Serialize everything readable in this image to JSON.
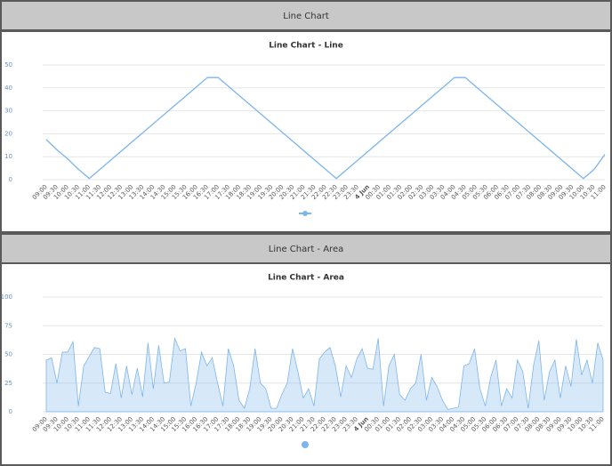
{
  "panels": [
    {
      "header": "Line Chart"
    },
    {
      "header": "Line Chart - Area"
    }
  ],
  "chart_data": [
    {
      "type": "line",
      "title": "Line Chart - Line",
      "categories": [
        "09:00",
        "09:30",
        "10:00",
        "10:30",
        "11:00",
        "11:30",
        "12:00",
        "12:30",
        "13:00",
        "13:30",
        "14:00",
        "14:30",
        "15:00",
        "15:30",
        "16:00",
        "16:30",
        "17:00",
        "17:30",
        "18:00",
        "18:30",
        "19:00",
        "19:30",
        "20:00",
        "20:30",
        "21:00",
        "21:30",
        "22:00",
        "22:30",
        "23:00",
        "23:30",
        "4 Jun",
        "00:30",
        "01:00",
        "01:30",
        "02:00",
        "02:30",
        "03:00",
        "03:30",
        "04:00",
        "04:30",
        "05:00",
        "05:30",
        "06:00",
        "06:30",
        "07:00",
        "07:30",
        "08:00",
        "08:30",
        "09:00",
        "09:30",
        "10:00",
        "10:30",
        "11:00"
      ],
      "values": [
        17.5,
        13,
        9,
        4.5,
        0.5,
        4.5,
        8.5,
        12.5,
        16.5,
        20.5,
        24.5,
        28.5,
        32.5,
        36.5,
        40.5,
        44.5,
        44.5,
        40.5,
        36.5,
        32.5,
        28.5,
        24.5,
        20.5,
        16.5,
        12.5,
        8.5,
        4.5,
        0.5,
        4.5,
        8.5,
        12.5,
        16.5,
        20.5,
        24.5,
        28.5,
        32.5,
        36.5,
        40.5,
        44.5,
        44.5,
        40.5,
        36.5,
        32.5,
        28.5,
        24.5,
        20.5,
        16.5,
        12.5,
        8.5,
        4.5,
        0.5,
        4.5,
        11
      ],
      "color": "#7cb5ec",
      "ylim": [
        0,
        50
      ],
      "yticks": [
        0,
        10,
        20,
        30,
        40,
        50
      ],
      "grid": true
    },
    {
      "type": "area",
      "title": "Line Chart - Area",
      "categories": [
        "09:00",
        null,
        "09:30",
        null,
        "10:00",
        null,
        "10:30",
        null,
        "11:00",
        null,
        "11:30",
        null,
        "12:00",
        null,
        "12:30",
        null,
        "13:00",
        null,
        "13:30",
        null,
        "14:00",
        null,
        "14:30",
        null,
        "15:00",
        null,
        "15:30",
        null,
        "16:00",
        null,
        "16:30",
        null,
        "17:00",
        null,
        "17:30",
        null,
        "18:00",
        null,
        "18:30",
        null,
        "19:00",
        null,
        "19:30",
        null,
        "20:00",
        null,
        "20:30",
        null,
        "21:00",
        null,
        "21:30",
        null,
        "22:00",
        null,
        "22:30",
        null,
        "23:00",
        null,
        "23:30",
        null,
        "4 Jun",
        null,
        "00:30",
        null,
        "01:00",
        null,
        "01:30",
        null,
        "02:00",
        null,
        "02:30",
        null,
        "03:00",
        null,
        "03:30",
        null,
        "04:00",
        null,
        "04:30",
        null,
        "05:00",
        null,
        "05:30",
        null,
        "06:00",
        null,
        "06:30",
        null,
        "07:00",
        null,
        "07:30",
        null,
        "08:00",
        null,
        "08:30",
        null,
        "09:00",
        null,
        "09:30",
        null,
        "10:00",
        null,
        "10:30",
        null,
        "11:00"
      ],
      "values": [
        45,
        47,
        25,
        52,
        52,
        61,
        5,
        40,
        48,
        56,
        55,
        17,
        16,
        42,
        12,
        40,
        15,
        38,
        13,
        60,
        20,
        58,
        25,
        26,
        64,
        53,
        55,
        5,
        25,
        52,
        40,
        47,
        25,
        5,
        55,
        40,
        10,
        3,
        20,
        55,
        25,
        20,
        3,
        3,
        15,
        25,
        55,
        35,
        12,
        20,
        5,
        46,
        52,
        56,
        40,
        13,
        40,
        30,
        46,
        55,
        38,
        37,
        64,
        5,
        40,
        50,
        15,
        10,
        20,
        25,
        50,
        10,
        30,
        22,
        10,
        2,
        3,
        4,
        40,
        42,
        55,
        20,
        5,
        30,
        45,
        5,
        20,
        12,
        45,
        35,
        3,
        40,
        62,
        10,
        35,
        45,
        12,
        40,
        22,
        63,
        32,
        45,
        25,
        60,
        45
      ],
      "color": "#7cb5ec",
      "ylim": [
        0,
        100
      ],
      "yticks": [
        0,
        25,
        50,
        75,
        100
      ],
      "grid": true
    }
  ]
}
